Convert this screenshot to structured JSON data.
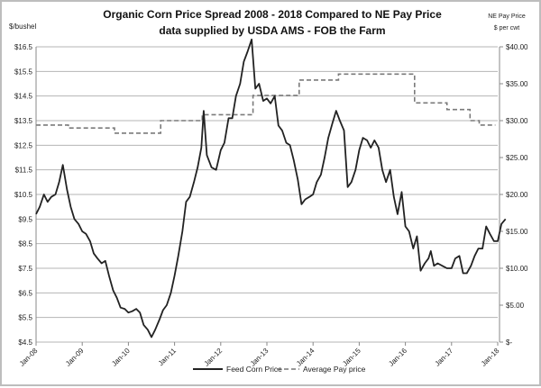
{
  "chart_data": {
    "type": "line",
    "title": "Organic Corn Price Spread 2008 - 2018 Compared to NE Pay Price",
    "subtitle": "data supplied by USDA AMS - FOB the Farm",
    "ylabel": "$/bushel",
    "y2label_line1": "NE Pay Price",
    "y2label_line2": "$ per cwt",
    "ylim": [
      4.5,
      17.0
    ],
    "y2lim": [
      0,
      40
    ],
    "xlim": [
      2008,
      2018.25
    ],
    "yticks": [
      "$4.5",
      "$5.5",
      "$6.5",
      "$7.5",
      "$8.5",
      "$9.5",
      "$10.5",
      "$11.5",
      "$12.5",
      "$13.5",
      "$14.5",
      "$15.5",
      "$16.5"
    ],
    "ytick_values": [
      4.5,
      5.5,
      6.5,
      7.5,
      8.5,
      9.5,
      10.5,
      11.5,
      12.5,
      13.5,
      14.5,
      15.5,
      16.5
    ],
    "y2ticks": [
      "$-",
      "$5.00",
      "$10.00",
      "$15.00",
      "$20.00",
      "$25.00",
      "$30.00",
      "$35.00",
      "$40.00"
    ],
    "y2tick_values": [
      0,
      5,
      10,
      15,
      20,
      25,
      30,
      35,
      40
    ],
    "xticks": [
      "Jan-08",
      "Jan-09",
      "Jan-10",
      "Jan-11",
      "Jan-12",
      "Jan-13",
      "Jan-14",
      "Jan-15",
      "Jan-16",
      "Jan-17",
      "Jan-18"
    ],
    "grid": true,
    "legend_position": "bottom",
    "series": [
      {
        "name": "Feed Corn Price",
        "axis": "left",
        "style": "solid",
        "points": [
          [
            2008.0,
            9.7
          ],
          [
            2008.08,
            10.0
          ],
          [
            2008.17,
            10.5
          ],
          [
            2008.25,
            10.2
          ],
          [
            2008.33,
            10.4
          ],
          [
            2008.42,
            10.5
          ],
          [
            2008.5,
            11.0
          ],
          [
            2008.58,
            11.7
          ],
          [
            2008.67,
            10.7
          ],
          [
            2008.75,
            10.0
          ],
          [
            2008.83,
            9.5
          ],
          [
            2008.92,
            9.3
          ],
          [
            2009.0,
            9.0
          ],
          [
            2009.08,
            8.9
          ],
          [
            2009.17,
            8.6
          ],
          [
            2009.25,
            8.1
          ],
          [
            2009.33,
            7.9
          ],
          [
            2009.42,
            7.7
          ],
          [
            2009.5,
            7.8
          ],
          [
            2009.58,
            7.2
          ],
          [
            2009.67,
            6.6
          ],
          [
            2009.75,
            6.3
          ],
          [
            2009.83,
            5.9
          ],
          [
            2009.92,
            5.85
          ],
          [
            2010.0,
            5.7
          ],
          [
            2010.08,
            5.75
          ],
          [
            2010.17,
            5.85
          ],
          [
            2010.25,
            5.7
          ],
          [
            2010.33,
            5.2
          ],
          [
            2010.42,
            5.0
          ],
          [
            2010.5,
            4.7
          ],
          [
            2010.58,
            5.0
          ],
          [
            2010.67,
            5.4
          ],
          [
            2010.75,
            5.8
          ],
          [
            2010.83,
            6.0
          ],
          [
            2010.92,
            6.5
          ],
          [
            2011.0,
            7.2
          ],
          [
            2011.08,
            8.0
          ],
          [
            2011.17,
            9.0
          ],
          [
            2011.25,
            10.2
          ],
          [
            2011.33,
            10.4
          ],
          [
            2011.42,
            11.0
          ],
          [
            2011.5,
            11.6
          ],
          [
            2011.58,
            12.4
          ],
          [
            2011.63,
            13.9
          ],
          [
            2011.7,
            12.1
          ],
          [
            2011.8,
            11.6
          ],
          [
            2011.9,
            11.5
          ],
          [
            2012.0,
            12.3
          ],
          [
            2012.08,
            12.6
          ],
          [
            2012.17,
            13.6
          ],
          [
            2012.25,
            13.6
          ],
          [
            2012.33,
            14.5
          ],
          [
            2012.42,
            15.0
          ],
          [
            2012.5,
            15.9
          ],
          [
            2012.58,
            16.3
          ],
          [
            2012.67,
            16.8
          ],
          [
            2012.75,
            14.8
          ],
          [
            2012.83,
            15.0
          ],
          [
            2012.92,
            14.3
          ],
          [
            2013.0,
            14.4
          ],
          [
            2013.08,
            14.2
          ],
          [
            2013.17,
            14.5
          ],
          [
            2013.25,
            13.3
          ],
          [
            2013.33,
            13.1
          ],
          [
            2013.42,
            12.6
          ],
          [
            2013.5,
            12.5
          ],
          [
            2013.58,
            11.9
          ],
          [
            2013.67,
            11.1
          ],
          [
            2013.75,
            10.1
          ],
          [
            2013.83,
            10.3
          ],
          [
            2013.92,
            10.4
          ],
          [
            2014.0,
            10.5
          ],
          [
            2014.08,
            11.0
          ],
          [
            2014.17,
            11.3
          ],
          [
            2014.25,
            12.0
          ],
          [
            2014.33,
            12.8
          ],
          [
            2014.42,
            13.4
          ],
          [
            2014.5,
            13.9
          ],
          [
            2014.58,
            13.5
          ],
          [
            2014.67,
            13.1
          ],
          [
            2014.75,
            10.8
          ],
          [
            2014.83,
            11.0
          ],
          [
            2014.92,
            11.5
          ],
          [
            2015.0,
            12.3
          ],
          [
            2015.08,
            12.8
          ],
          [
            2015.17,
            12.7
          ],
          [
            2015.25,
            12.4
          ],
          [
            2015.33,
            12.7
          ],
          [
            2015.42,
            12.4
          ],
          [
            2015.5,
            11.5
          ],
          [
            2015.58,
            11.0
          ],
          [
            2015.67,
            11.5
          ],
          [
            2015.75,
            10.4
          ],
          [
            2015.83,
            9.7
          ],
          [
            2015.92,
            10.6
          ],
          [
            2016.0,
            9.2
          ],
          [
            2016.08,
            9.0
          ],
          [
            2016.17,
            8.3
          ],
          [
            2016.25,
            8.8
          ],
          [
            2016.33,
            7.4
          ],
          [
            2016.42,
            7.7
          ],
          [
            2016.5,
            7.9
          ],
          [
            2016.55,
            8.2
          ],
          [
            2016.62,
            7.6
          ],
          [
            2016.7,
            7.7
          ],
          [
            2016.8,
            7.6
          ],
          [
            2016.9,
            7.5
          ],
          [
            2017.0,
            7.5
          ],
          [
            2017.08,
            7.9
          ],
          [
            2017.17,
            8.0
          ],
          [
            2017.25,
            7.3
          ],
          [
            2017.33,
            7.3
          ],
          [
            2017.42,
            7.6
          ],
          [
            2017.5,
            8.0
          ],
          [
            2017.58,
            8.3
          ],
          [
            2017.67,
            8.3
          ],
          [
            2017.75,
            9.2
          ],
          [
            2017.83,
            8.9
          ],
          [
            2017.92,
            8.6
          ],
          [
            2018.0,
            8.6
          ],
          [
            2018.08,
            9.3
          ],
          [
            2018.17,
            9.5
          ]
        ]
      },
      {
        "name": "Average Pay price",
        "axis": "right",
        "style": "dashed",
        "points": [
          [
            2008.0,
            29.4
          ],
          [
            2008.7,
            29.4
          ],
          [
            2008.7,
            29.0
          ],
          [
            2009.7,
            29.0
          ],
          [
            2009.7,
            28.3
          ],
          [
            2010.7,
            28.3
          ],
          [
            2010.7,
            30.0
          ],
          [
            2011.6,
            30.0
          ],
          [
            2011.6,
            30.8
          ],
          [
            2012.7,
            30.8
          ],
          [
            2012.7,
            33.4
          ],
          [
            2013.7,
            33.4
          ],
          [
            2013.7,
            35.5
          ],
          [
            2014.55,
            35.5
          ],
          [
            2014.55,
            36.3
          ],
          [
            2016.2,
            36.3
          ],
          [
            2016.2,
            32.4
          ],
          [
            2016.9,
            32.4
          ],
          [
            2016.9,
            31.5
          ],
          [
            2017.4,
            31.5
          ],
          [
            2017.4,
            30.0
          ],
          [
            2017.6,
            30.0
          ],
          [
            2017.6,
            29.4
          ],
          [
            2017.95,
            29.4
          ]
        ]
      }
    ]
  }
}
